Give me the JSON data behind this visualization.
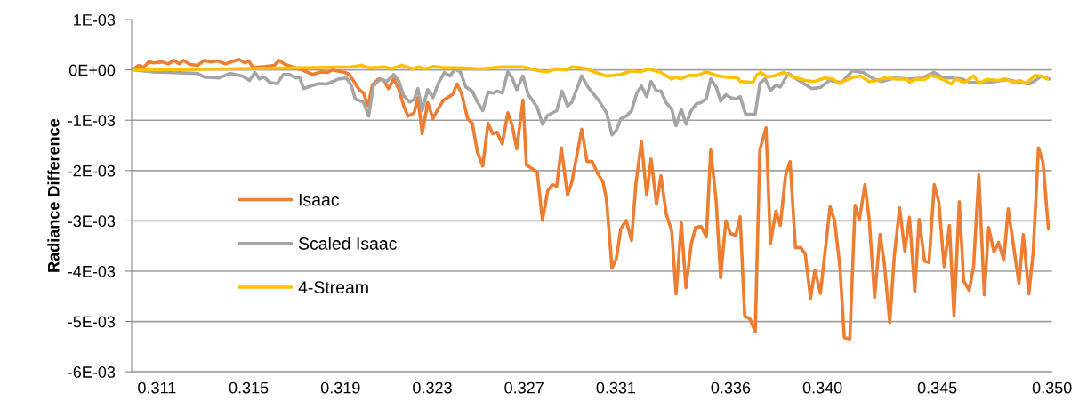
{
  "chart_data": {
    "type": "line",
    "ylabel": "Radiance Difference",
    "xlim": [
      0.3099,
      0.35
    ],
    "xticks": [
      0.311,
      0.315,
      0.319,
      0.323,
      0.327,
      0.331,
      0.336,
      {
        "value": 0.34,
        "label": "0.340"
      },
      0.345,
      {
        "value": 0.35,
        "label": "0.350"
      }
    ],
    "ylim": [
      -0.006,
      0.001
    ],
    "yticks": [
      {
        "value": 0.001,
        "label": "1E-03"
      },
      {
        "value": 0,
        "label": "0E+00"
      },
      {
        "value": -0.001,
        "label": "-1E-03"
      },
      {
        "value": -0.002,
        "label": "-2E-03"
      },
      {
        "value": -0.003,
        "label": "-3E-03"
      },
      {
        "value": -0.004,
        "label": "-4E-03"
      },
      {
        "value": -0.005,
        "label": "-5E-03"
      },
      {
        "value": -0.006,
        "label": "-6E-03"
      }
    ],
    "grid": "y",
    "legend": "left",
    "marker": "none",
    "line_style": "solid",
    "series": [
      {
        "name": "Isaac",
        "color": "#ed7d31",
        "x": [
          0.30999,
          0.31022,
          0.31042,
          0.31065,
          0.31088,
          0.31123,
          0.3115,
          0.31174,
          0.31197,
          0.31216,
          0.31244,
          0.31278,
          0.31306,
          0.31333,
          0.31364,
          0.31399,
          0.31457,
          0.31484,
          0.315,
          0.31519,
          0.31573,
          0.31612,
          0.31632,
          0.31659,
          0.31686,
          0.31732,
          0.31779,
          0.31814,
          0.31845,
          0.31864,
          0.31919,
          0.31938,
          0.31961,
          0.31981,
          0.32,
          0.3202,
          0.32039,
          0.32066,
          0.32089,
          0.32109,
          0.32132,
          0.32155,
          0.32175,
          0.32194,
          0.32221,
          0.32237,
          0.32256,
          0.3228,
          0.32303,
          0.32322,
          0.32349,
          0.32388,
          0.32408,
          0.32427,
          0.32454,
          0.32474,
          0.32497,
          0.3252,
          0.32543,
          0.32563,
          0.32582,
          0.32605,
          0.32629,
          0.32648,
          0.32668,
          0.32695,
          0.3271,
          0.32757,
          0.3278,
          0.32803,
          0.32823,
          0.32842,
          0.32862,
          0.32889,
          0.32908,
          0.32951,
          0.32974,
          0.32997,
          0.33017,
          0.33044,
          0.33059,
          0.33083,
          0.33102,
          0.33121,
          0.33145,
          0.33168,
          0.33187,
          0.33211,
          0.33234,
          0.33253,
          0.33277,
          0.33296,
          0.33319,
          0.33343,
          0.33362,
          0.33385,
          0.33405,
          0.33428,
          0.33447,
          0.33471,
          0.33494,
          0.33513,
          0.33537,
          0.33556,
          0.33579,
          0.33599,
          0.33622,
          0.33641,
          0.33661,
          0.33684,
          0.33707,
          0.33727,
          0.33754,
          0.33773,
          0.33797,
          0.33816,
          0.33839,
          0.33859,
          0.33882,
          0.33905,
          0.33925,
          0.33948,
          0.33967,
          0.33991,
          0.34033,
          0.34053,
          0.34076,
          0.34095,
          0.34119,
          0.34142,
          0.34161,
          0.34185,
          0.34204,
          0.34227,
          0.34251,
          0.3427,
          0.34293,
          0.34313,
          0.34336,
          0.34359,
          0.34379,
          0.34402,
          0.34421,
          0.34445,
          0.34464,
          0.34487,
          0.34507,
          0.3453,
          0.34553,
          0.34573,
          0.34596,
          0.34615,
          0.34639,
          0.34658,
          0.34681,
          0.34705,
          0.34724,
          0.34747,
          0.34767,
          0.3479,
          0.34809,
          0.34833,
          0.34856,
          0.34875,
          0.34899,
          0.34918,
          0.34941,
          0.34961,
          0.34984
        ],
        "values": [
          2e-05,
          9e-05,
          5e-05,
          0.00016,
          0.00014,
          0.00016,
          0.00012,
          0.00019,
          0.00012,
          0.00019,
          0.00011,
          9e-05,
          0.00019,
          0.00016,
          0.00018,
          0.00012,
          0.00021,
          0.00014,
          0.00018,
          5e-05,
          7e-05,
          9e-05,
          0.00019,
          0.00011,
          7e-05,
          0.0,
          -9e-05,
          -4e-05,
          -5e-05,
          0.0,
          -5e-05,
          -9e-05,
          -0.00025,
          -0.00039,
          -0.00046,
          -0.00071,
          -0.0003,
          -0.00018,
          -0.00021,
          -0.00037,
          -0.00018,
          -0.00039,
          -0.00071,
          -0.00092,
          -0.00085,
          -0.00055,
          -0.00127,
          -0.00065,
          -0.00097,
          -0.0008,
          -0.0006,
          -0.00049,
          -0.00028,
          -0.00046,
          -0.00097,
          -0.00106,
          -0.00164,
          -0.00191,
          -0.00106,
          -0.00127,
          -0.00124,
          -0.00147,
          -0.00085,
          -0.0011,
          -0.00157,
          -0.0006,
          -0.00189,
          -0.00203,
          -0.00299,
          -0.0024,
          -0.00228,
          -0.00231,
          -0.00155,
          -0.00249,
          -0.00223,
          -0.00118,
          -0.00182,
          -0.00182,
          -0.00203,
          -0.00223,
          -0.00258,
          -0.00394,
          -0.00375,
          -0.00316,
          -0.00299,
          -0.00339,
          -0.00226,
          -0.00143,
          -0.00249,
          -0.00177,
          -0.00267,
          -0.0021,
          -0.00286,
          -0.0032,
          -0.00445,
          -0.00304,
          -0.00433,
          -0.00346,
          -0.00313,
          -0.00311,
          -0.00332,
          -0.00159,
          -0.00262,
          -0.00413,
          -0.003,
          -0.00325,
          -0.00329,
          -0.00292,
          -0.00489,
          -0.00495,
          -0.00521,
          -0.00159,
          -0.00115,
          -0.00345,
          -0.00281,
          -0.00309,
          -0.0021,
          -0.00182,
          -0.00353,
          -0.00353,
          -0.00366,
          -0.00454,
          -0.00398,
          -0.00444,
          -0.00272,
          -0.003,
          -0.00392,
          -0.00532,
          -0.00535,
          -0.00269,
          -0.00297,
          -0.00228,
          -0.00299,
          -0.00452,
          -0.00327,
          -0.00387,
          -0.00502,
          -0.00369,
          -0.00274,
          -0.0036,
          -0.00293,
          -0.0044,
          -0.00297,
          -0.0038,
          -0.00383,
          -0.00228,
          -0.00263,
          -0.00391,
          -0.00309,
          -0.00489,
          -0.00262,
          -0.00419,
          -0.00438,
          -0.00392,
          -0.00209,
          -0.00447,
          -0.00313,
          -0.00362,
          -0.00343,
          -0.00378,
          -0.00276,
          -0.00352,
          -0.00424,
          -0.00327,
          -0.00445,
          -0.00362,
          -0.00155,
          -0.00184,
          -0.00316
        ]
      },
      {
        "name": "Scaled Isaac",
        "color": "#a5a5a5",
        "x": [
          0.30999,
          0.31088,
          0.31278,
          0.31306,
          0.31372,
          0.31418,
          0.31472,
          0.31504,
          0.31527,
          0.31546,
          0.31566,
          0.31593,
          0.31624,
          0.31651,
          0.31678,
          0.31705,
          0.31721,
          0.3174,
          0.31771,
          0.31806,
          0.31841,
          0.31892,
          0.31926,
          0.31946,
          0.31965,
          0.32,
          0.32023,
          0.32043,
          0.32074,
          0.32101,
          0.32132,
          0.32155,
          0.32175,
          0.32202,
          0.32221,
          0.32237,
          0.32256,
          0.3228,
          0.32303,
          0.32326,
          0.32353,
          0.32377,
          0.324,
          0.32423,
          0.32446,
          0.32474,
          0.32497,
          0.3252,
          0.32543,
          0.32567,
          0.32582,
          0.32605,
          0.32629,
          0.32648,
          0.32668,
          0.32695,
          0.32718,
          0.32757,
          0.3278,
          0.32803,
          0.32842,
          0.32865,
          0.32889,
          0.32908,
          0.32951,
          0.32978,
          0.33024,
          0.33059,
          0.33083,
          0.33102,
          0.33121,
          0.33145,
          0.33168,
          0.33191,
          0.33211,
          0.33234,
          0.33253,
          0.33277,
          0.33296,
          0.33319,
          0.33343,
          0.33362,
          0.33385,
          0.33405,
          0.33428,
          0.33451,
          0.33471,
          0.33494,
          0.33513,
          0.33537,
          0.33556,
          0.33579,
          0.33599,
          0.33622,
          0.33641,
          0.33665,
          0.33707,
          0.33727,
          0.3375,
          0.33773,
          0.33797,
          0.33816,
          0.33851,
          0.3389,
          0.33952,
          0.33991,
          0.34029,
          0.34084,
          0.3413,
          0.34177,
          0.34223,
          0.34258,
          0.34313,
          0.34379,
          0.34433,
          0.34487,
          0.34526,
          0.34565,
          0.34608,
          0.34646,
          0.34701,
          0.34755,
          0.34805,
          0.3486,
          0.34902,
          0.34933,
          0.34953,
          0.34988
        ],
        "values": [
          0.0,
          -4e-05,
          -7e-05,
          -0.00014,
          -0.00016,
          -7e-05,
          -0.00012,
          -0.00021,
          -5e-05,
          -0.00018,
          -0.00014,
          -0.00025,
          -0.00027,
          -9e-05,
          -9e-05,
          -0.00016,
          -0.00014,
          -0.00037,
          -0.00032,
          -0.00027,
          -0.00028,
          -0.00018,
          -0.00016,
          -0.0003,
          -0.00058,
          -0.00064,
          -0.00092,
          -0.00032,
          -0.00018,
          -0.00023,
          -9e-05,
          -0.00023,
          -0.00051,
          -0.00064,
          -0.00058,
          -0.00037,
          -0.00081,
          -0.00039,
          -0.00055,
          -0.00027,
          -5e-05,
          -0.00012,
          2e-05,
          -5e-05,
          -0.00034,
          -0.00042,
          -0.00064,
          -0.00081,
          -0.00044,
          -0.00046,
          -0.00042,
          -0.00046,
          -4e-05,
          -0.00016,
          -0.00039,
          -0.00012,
          -0.00049,
          -0.00074,
          -0.00108,
          -0.0009,
          -0.00081,
          -0.00042,
          -0.00072,
          -0.00064,
          -0.00012,
          -0.00034,
          -0.0006,
          -0.00085,
          -0.00129,
          -0.0012,
          -0.00097,
          -0.00092,
          -0.00081,
          -0.00046,
          -0.00032,
          -0.00053,
          -0.00023,
          -0.00042,
          -0.00042,
          -0.00065,
          -0.00078,
          -0.00111,
          -0.00078,
          -0.00108,
          -0.00081,
          -0.00067,
          -0.00065,
          -0.00057,
          -0.00018,
          -0.00034,
          -0.00062,
          -0.00049,
          -0.00055,
          -0.00058,
          -0.00053,
          -0.00088,
          -0.00088,
          -0.00027,
          -0.00018,
          -0.00041,
          -0.0003,
          -0.00034,
          -7e-05,
          -0.00019,
          -0.00037,
          -0.00035,
          -0.00021,
          -0.00025,
          -2e-05,
          -5e-05,
          -0.00018,
          -0.00023,
          -0.00016,
          -0.00018,
          -0.00016,
          -5e-05,
          -0.00016,
          -0.00016,
          -0.00018,
          -0.00025,
          -0.00025,
          -0.00023,
          -0.00019,
          -0.00025,
          -0.00028,
          -0.00019,
          -0.00012,
          -0.00018
        ]
      },
      {
        "name": "4-Stream",
        "color": "#ffc000",
        "x": [
          0.30999,
          0.31383,
          0.31705,
          0.31946,
          0.31992,
          0.32027,
          0.32093,
          0.3212,
          0.32167,
          0.32214,
          0.32241,
          0.32268,
          0.32307,
          0.32361,
          0.32427,
          0.32508,
          0.32602,
          0.32656,
          0.32695,
          0.32749,
          0.32796,
          0.32842,
          0.32885,
          0.32908,
          0.32951,
          0.32974,
          0.33005,
          0.33059,
          0.33121,
          0.33168,
          0.33207,
          0.33242,
          0.33296,
          0.33343,
          0.33362,
          0.33381,
          0.33416,
          0.33455,
          0.33494,
          0.33537,
          0.33575,
          0.3363,
          0.33641,
          0.33696,
          0.33715,
          0.33731,
          0.33758,
          0.33789,
          0.33832,
          0.3387,
          0.33925,
          0.33963,
          0.3401,
          0.34045,
          0.34076,
          0.34099,
          0.34138,
          0.34165,
          0.34204,
          0.34239,
          0.3427,
          0.34324,
          0.34367,
          0.34379,
          0.34406,
          0.34445,
          0.34472,
          0.34499,
          0.34534,
          0.34561,
          0.3458,
          0.34619,
          0.34658,
          0.34685,
          0.34712,
          0.34767,
          0.34794,
          0.34833,
          0.3486,
          0.34887,
          0.34926,
          0.34949,
          0.3498
        ],
        "values": [
          0.0,
          2e-05,
          4e-05,
          6e-05,
          9e-05,
          4e-05,
          6e-05,
          2e-05,
          9e-05,
          2e-05,
          6e-05,
          2e-05,
          7e-05,
          4e-05,
          4e-05,
          2e-05,
          6e-05,
          6e-05,
          6e-05,
          0.0,
          -4e-05,
          2e-05,
          0.0,
          6e-05,
          4e-05,
          2e-05,
          -4e-05,
          -0.00012,
          -9e-05,
          -2e-05,
          -4e-05,
          2e-05,
          -5e-05,
          -0.00018,
          -0.00014,
          -0.00018,
          -0.00011,
          -0.00011,
          -4e-05,
          -0.00011,
          -0.00014,
          -0.00016,
          -0.00023,
          -0.00025,
          -9e-05,
          -5e-05,
          -0.00014,
          -0.00012,
          -5e-05,
          -0.00014,
          -0.00021,
          -0.00023,
          -0.00016,
          -0.00018,
          -0.00027,
          -0.00021,
          -0.00014,
          -0.00012,
          -0.00023,
          -0.00021,
          -0.00016,
          -0.00018,
          -0.00018,
          -0.00025,
          -0.00018,
          -0.00019,
          -0.00011,
          -0.00014,
          -0.00021,
          -0.00028,
          -0.00018,
          -0.00025,
          -0.00012,
          -0.00027,
          -0.00019,
          -0.00021,
          -0.00018,
          -0.00025,
          -0.00021,
          -0.00027,
          -0.00011,
          -0.00012,
          -0.00018
        ]
      }
    ]
  }
}
